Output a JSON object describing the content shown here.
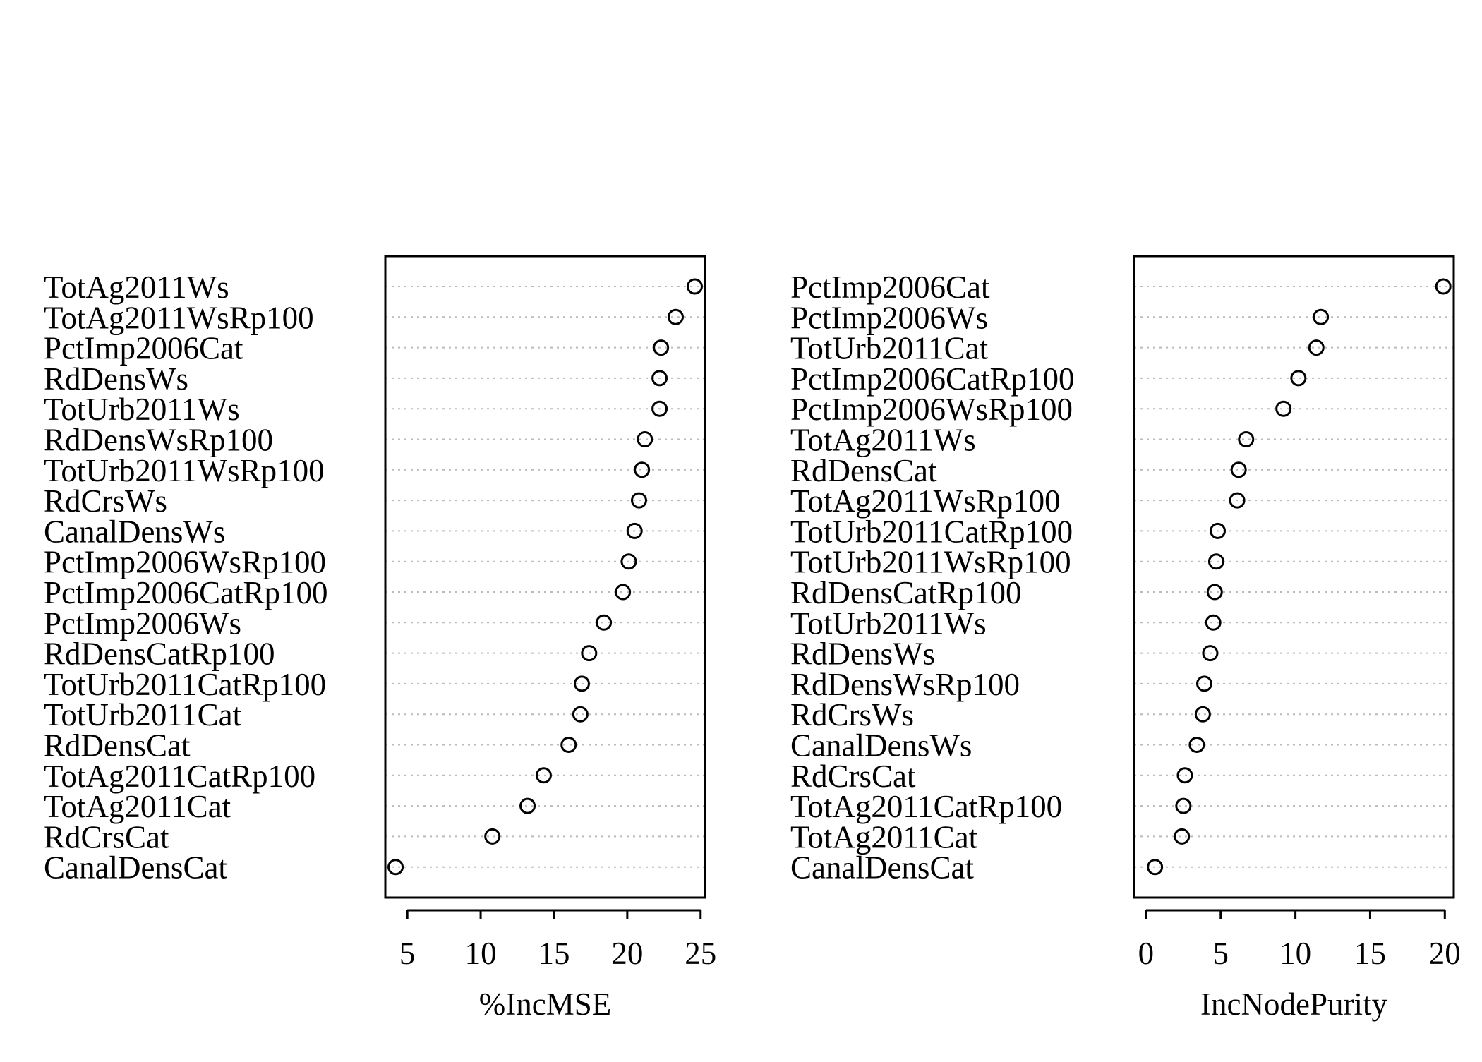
{
  "chart_data": [
    {
      "type": "dotchart",
      "xlabel": "%IncMSE",
      "xticks": [
        5,
        10,
        15,
        20,
        25
      ],
      "xlim": [
        3.5,
        25.3
      ],
      "grid": "dotted horizontal lines",
      "labels": [
        "TotAg2011Ws",
        "TotAg2011WsRp100",
        "PctImp2006Cat",
        "RdDensWs",
        "TotUrb2011Ws",
        "RdDensWsRp100",
        "TotUrb2011WsRp100",
        "RdCrsWs",
        "CanalDensWs",
        "PctImp2006WsRp100",
        "PctImp2006CatRp100",
        "PctImp2006Ws",
        "RdDensCatRp100",
        "TotUrb2011CatRp100",
        "TotUrb2011Cat",
        "RdDensCat",
        "TotAg2011CatRp100",
        "TotAg2011Cat",
        "RdCrsCat",
        "CanalDensCat"
      ],
      "values": [
        24.6,
        23.3,
        22.3,
        22.2,
        22.2,
        21.2,
        21.0,
        20.8,
        20.5,
        20.1,
        19.7,
        18.4,
        17.4,
        16.9,
        16.8,
        16.0,
        14.3,
        13.2,
        10.8,
        4.2
      ]
    },
    {
      "type": "dotchart",
      "xlabel": "IncNodePurity",
      "xticks": [
        0,
        5,
        10,
        15,
        20
      ],
      "xlim": [
        -0.8,
        20.6
      ],
      "grid": "dotted horizontal lines",
      "labels": [
        "PctImp2006Cat",
        "PctImp2006Ws",
        "TotUrb2011Cat",
        "PctImp2006CatRp100",
        "PctImp2006WsRp100",
        "TotAg2011Ws",
        "RdDensCat",
        "TotAg2011WsRp100",
        "TotUrb2011CatRp100",
        "TotUrb2011WsRp100",
        "RdDensCatRp100",
        "TotUrb2011Ws",
        "RdDensWs",
        "RdDensWsRp100",
        "RdCrsWs",
        "CanalDensWs",
        "RdCrsCat",
        "TotAg2011CatRp100",
        "TotAg2011Cat",
        "CanalDensCat"
      ],
      "values": [
        19.9,
        11.7,
        11.4,
        10.2,
        9.2,
        6.7,
        6.2,
        6.1,
        4.8,
        4.7,
        4.6,
        4.5,
        4.3,
        3.9,
        3.8,
        3.4,
        2.6,
        2.5,
        2.4,
        0.6
      ]
    }
  ]
}
